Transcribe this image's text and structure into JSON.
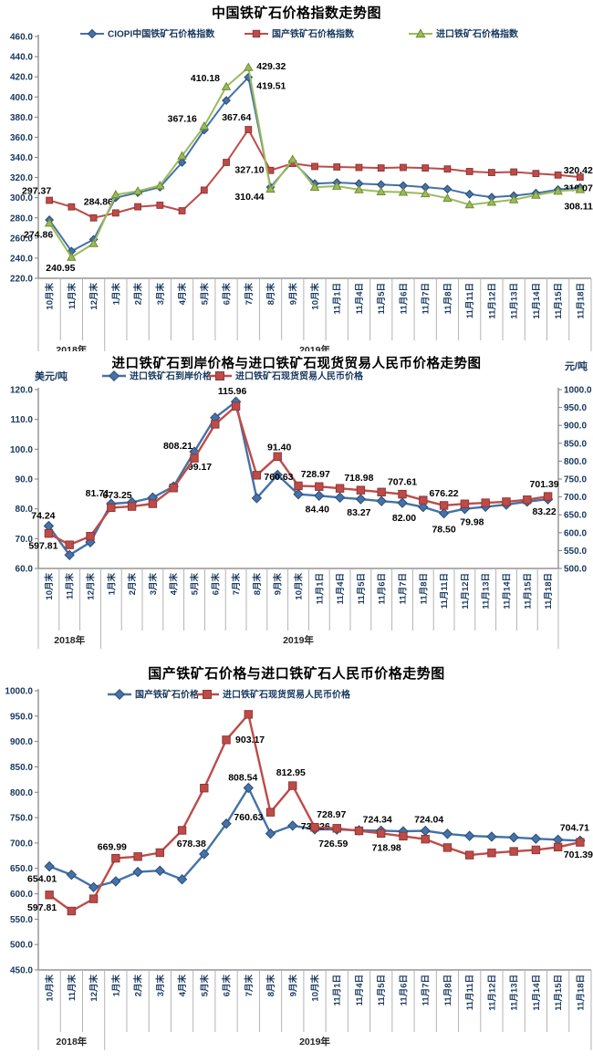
{
  "page": {
    "background": "#ffffff"
  },
  "colors": {
    "blue": "#4472A8",
    "blue_edge": "#2C4D75",
    "red": "#BE4B48",
    "red_edge": "#8C3836",
    "green": "#9BBB59",
    "green_edge": "#6F8B37",
    "axis_text": "#17375E",
    "label_text": "#000000",
    "axis_line": "#7F7F7F",
    "separator": "#B3B3B3",
    "year_text": "#262626"
  },
  "categories": [
    "10月末",
    "11月末",
    "12月末",
    "1月末",
    "2月末",
    "3月末",
    "4月末",
    "5月末",
    "6月末",
    "7月末",
    "8月末",
    "9月末",
    "10月末",
    "11月1日",
    "11月4日",
    "11月5日",
    "11月6日",
    "11月7日",
    "11月8日",
    "11月11日",
    "11月12日",
    "11月13日",
    "11月14日",
    "11月15日",
    "11月18日"
  ],
  "year_groups": [
    {
      "label": "2018年",
      "count": 3
    },
    {
      "label": "2019年",
      "count": 22
    }
  ],
  "chart_data": [
    {
      "type": "line",
      "title": "中国铁矿石价格指数走势图",
      "grid": false,
      "legend_position": "top",
      "y_axis": {
        "min": 220,
        "max": 460,
        "step": 20,
        "decimals": 1
      },
      "series": [
        {
          "name": "CIOPI中国铁矿石价格指数",
          "marker": "diamond",
          "color_key": "blue",
          "axis": "left",
          "values": [
            278.0,
            246.9,
            258.6,
            300.0,
            305.0,
            310.5,
            335.0,
            367.16,
            396.5,
            419.51,
            310.44,
            336.0,
            314.0,
            315.0,
            314.0,
            313.0,
            312.0,
            310.5,
            308.5,
            303.5,
            300.5,
            302.0,
            304.5,
            308.0,
            310.07
          ],
          "point_labels": [
            {
              "i": 7,
              "t": "367.16",
              "dx": -8,
              "dy": -9,
              "a": "end"
            },
            {
              "i": 9,
              "t": "419.51",
              "dx": 9,
              "dy": 13,
              "a": "start"
            },
            {
              "i": 10,
              "t": "310.44",
              "dx": -7,
              "dy": 14,
              "a": "end"
            },
            {
              "i": 24,
              "t": "310.07",
              "dx": 14,
              "dy": 4,
              "a": "end"
            }
          ]
        },
        {
          "name": "国产铁矿石价格指数",
          "marker": "square",
          "color_key": "red",
          "axis": "left",
          "values": [
            297.37,
            290.9,
            280.0,
            284.86,
            291.0,
            292.5,
            287.0,
            307.5,
            335.0,
            367.64,
            327.1,
            334.0,
            331.0,
            330.5,
            330.0,
            329.5,
            330.0,
            329.5,
            328.5,
            326.0,
            325.0,
            325.5,
            324.0,
            322.5,
            320.42
          ],
          "point_labels": [
            {
              "i": 0,
              "t": "297.37",
              "dx": -14,
              "dy": -7,
              "a": "middle"
            },
            {
              "i": 3,
              "t": "284.86",
              "dx": -19,
              "dy": -9,
              "a": "middle"
            },
            {
              "i": 9,
              "t": "367.64",
              "dx": -13,
              "dy": -10,
              "a": "middle"
            },
            {
              "i": 10,
              "t": "327.10",
              "dx": -7,
              "dy": 3,
              "a": "end"
            },
            {
              "i": 24,
              "t": "320.42",
              "dx": 14,
              "dy": -4,
              "a": "end"
            }
          ]
        },
        {
          "name": "进口铁矿石价格指数",
          "marker": "triangle",
          "color_key": "green",
          "axis": "left",
          "values": [
            274.86,
            240.95,
            254.5,
            303.0,
            306.5,
            312.0,
            341.5,
            371.0,
            410.18,
            429.32,
            308.5,
            338.0,
            310.5,
            311.5,
            308.0,
            306.0,
            305.5,
            304.0,
            299.5,
            293.0,
            295.5,
            298.0,
            302.5,
            306.5,
            308.11
          ],
          "point_labels": [
            {
              "i": 0,
              "t": "274.86",
              "dx": -12,
              "dy": 16,
              "a": "middle"
            },
            {
              "i": 1,
              "t": "240.95",
              "dx": -12,
              "dy": 15,
              "a": "middle"
            },
            {
              "i": 8,
              "t": "410.18",
              "dx": -7,
              "dy": -6,
              "a": "end"
            },
            {
              "i": 9,
              "t": "429.32",
              "dx": 9,
              "dy": 2,
              "a": "start"
            },
            {
              "i": 24,
              "t": "308.11",
              "dx": 14,
              "dy": 22,
              "a": "end"
            }
          ]
        }
      ]
    },
    {
      "type": "line",
      "title": "进口铁矿石到岸价格与进口铁矿石现货贸易人民币价格走势图",
      "grid": false,
      "legend_position": "top",
      "y_axis": {
        "min": 60,
        "max": 120,
        "step": 10,
        "decimals": 1,
        "title": "美元/吨"
      },
      "y2_axis": {
        "min": 500,
        "max": 1000,
        "step": 50,
        "decimals": 1,
        "title": "元/吨"
      },
      "series": [
        {
          "name": "进口铁矿石到岸价格",
          "marker": "diamond",
          "color_key": "blue",
          "axis": "left",
          "values": [
            74.24,
            64.5,
            68.8,
            81.71,
            82.2,
            83.8,
            87.5,
            99.17,
            110.6,
            115.96,
            83.6,
            91.4,
            84.9,
            84.4,
            83.8,
            83.27,
            82.6,
            82.0,
            80.6,
            78.5,
            79.98,
            80.7,
            81.4,
            82.4,
            83.22
          ],
          "point_labels": [
            {
              "i": 0,
              "t": "74.24",
              "dx": -6,
              "dy": -8,
              "a": "middle"
            },
            {
              "i": 3,
              "t": "81.71",
              "dx": -15,
              "dy": -8,
              "a": "middle"
            },
            {
              "i": 7,
              "t": "99.17",
              "dx": 6,
              "dy": 20,
              "a": "middle"
            },
            {
              "i": 9,
              "t": "115.96",
              "dx": -4,
              "dy": -8,
              "a": "middle"
            },
            {
              "i": 11,
              "t": "91.40",
              "dx": 2,
              "dy": -27,
              "a": "middle"
            },
            {
              "i": 13,
              "t": "84.40",
              "dx": -2,
              "dy": 18,
              "a": "middle"
            },
            {
              "i": 15,
              "t": "83.27",
              "dx": -2,
              "dy": 18,
              "a": "middle"
            },
            {
              "i": 17,
              "t": "82.00",
              "dx": 2,
              "dy": 20,
              "a": "middle"
            },
            {
              "i": 19,
              "t": "78.50",
              "dx": 0,
              "dy": 21,
              "a": "middle"
            },
            {
              "i": 20,
              "t": "79.98",
              "dx": 8,
              "dy": 18,
              "a": "middle"
            },
            {
              "i": 24,
              "t": "83.22",
              "dx": -4,
              "dy": 17,
              "a": "middle"
            }
          ]
        },
        {
          "name": "进口铁矿石现货贸易人民币价格",
          "marker": "square",
          "color_key": "red",
          "axis": "right",
          "values": [
            597.81,
            566.0,
            590.0,
            669.99,
            673.25,
            681.0,
            725.0,
            808.21,
            903.17,
            953.5,
            760.63,
            812.95,
            731.0,
            728.97,
            724.0,
            718.98,
            713.5,
            707.61,
            691.0,
            676.22,
            680.5,
            683.5,
            686.5,
            692.0,
            701.39
          ],
          "point_labels": [
            {
              "i": 0,
              "t": "597.81",
              "dx": -6,
              "dy": 17,
              "a": "middle"
            },
            {
              "i": 4,
              "t": "673.25",
              "dx": -16,
              "dy": -9,
              "a": "middle"
            },
            {
              "i": 7,
              "t": "808.21",
              "dx": -18,
              "dy": -10,
              "a": "middle"
            },
            {
              "i": 10,
              "t": "760.63",
              "dx": 8,
              "dy": 5,
              "a": "start"
            },
            {
              "i": 13,
              "t": "728.97",
              "dx": -4,
              "dy": -10,
              "a": "middle"
            },
            {
              "i": 15,
              "t": "718.98",
              "dx": -2,
              "dy": -10,
              "a": "middle"
            },
            {
              "i": 17,
              "t": "707.61",
              "dx": 0,
              "dy": -10,
              "a": "middle"
            },
            {
              "i": 19,
              "t": "676.22",
              "dx": 0,
              "dy": -10,
              "a": "middle"
            },
            {
              "i": 24,
              "t": "701.39",
              "dx": -4,
              "dy": -10,
              "a": "middle"
            }
          ]
        }
      ]
    },
    {
      "type": "line",
      "title": "国产铁矿石价格与进口铁矿石人民币价格走势图",
      "grid": false,
      "legend_position": "top",
      "y_axis": {
        "min": 450,
        "max": 1000,
        "step": 50,
        "decimals": 1
      },
      "series": [
        {
          "name": "国产铁矿石价格",
          "marker": "diamond",
          "color_key": "blue",
          "axis": "left",
          "values": [
            654.01,
            637.5,
            613.0,
            624.5,
            643.0,
            645.5,
            628.5,
            678.38,
            738.0,
            808.54,
            718.5,
            734.26,
            727.0,
            726.59,
            725.0,
            724.34,
            723.0,
            724.04,
            718.0,
            714.0,
            712.5,
            711.0,
            708.5,
            706.5,
            704.71
          ],
          "point_labels": [
            {
              "i": 0,
              "t": "654.01",
              "dx": -8,
              "dy": 17,
              "a": "middle"
            },
            {
              "i": 7,
              "t": "678.38",
              "dx": -14,
              "dy": -8,
              "a": "middle"
            },
            {
              "i": 9,
              "t": "808.54",
              "dx": -6,
              "dy": -8,
              "a": "middle"
            },
            {
              "i": 11,
              "t": "734.26",
              "dx": 9,
              "dy": 4,
              "a": "start"
            },
            {
              "i": 13,
              "t": "726.59",
              "dx": -4,
              "dy": 19,
              "a": "middle"
            },
            {
              "i": 15,
              "t": "724.34",
              "dx": -4,
              "dy": -9,
              "a": "middle"
            },
            {
              "i": 17,
              "t": "724.04",
              "dx": 4,
              "dy": -9,
              "a": "middle"
            },
            {
              "i": 24,
              "t": "704.71",
              "dx": -6,
              "dy": -11,
              "a": "middle"
            }
          ]
        },
        {
          "name": "进口铁矿石现货贸易人民币价格",
          "marker": "square",
          "color_key": "red",
          "axis": "left",
          "values": [
            597.81,
            566.0,
            590.0,
            669.99,
            673.25,
            681.0,
            725.0,
            808.21,
            903.17,
            953.5,
            760.63,
            812.95,
            731.0,
            728.97,
            724.0,
            718.98,
            713.5,
            707.61,
            691.0,
            676.22,
            680.5,
            683.5,
            686.5,
            692.0,
            701.39
          ],
          "point_labels": [
            {
              "i": 0,
              "t": "597.81",
              "dx": -8,
              "dy": 17,
              "a": "middle"
            },
            {
              "i": 3,
              "t": "669.99",
              "dx": -4,
              "dy": -9,
              "a": "middle"
            },
            {
              "i": 8,
              "t": "903.17",
              "dx": 10,
              "dy": 3,
              "a": "start"
            },
            {
              "i": 10,
              "t": "760.63",
              "dx": -8,
              "dy": 9,
              "a": "end"
            },
            {
              "i": 11,
              "t": "812.95",
              "dx": -2,
              "dy": -11,
              "a": "middle"
            },
            {
              "i": 13,
              "t": "728.97",
              "dx": -6,
              "dy": -12,
              "a": "middle"
            },
            {
              "i": 15,
              "t": "718.98",
              "dx": 6,
              "dy": 19,
              "a": "middle"
            },
            {
              "i": 24,
              "t": "701.39",
              "dx": -2,
              "dy": 17,
              "a": "middle"
            }
          ]
        }
      ]
    }
  ]
}
